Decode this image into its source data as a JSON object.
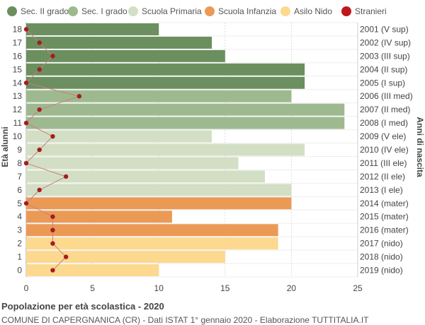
{
  "chart_data": {
    "type": "bar",
    "orientation": "horizontal",
    "title": "Popolazione per età scolastica - 2020",
    "subtitle": "COMUNE DI CAPERGNANICA (CR) - Dati ISTAT 1° gennaio 2020 - Elaborazione TUTTITALIA.IT",
    "ylabel_left": "Età alunni",
    "ylabel_right": "Anni di nascita",
    "xlim": [
      0,
      25
    ],
    "xticks": [
      0,
      5,
      10,
      15,
      20,
      25
    ],
    "grid": true,
    "legend_position": "top",
    "legend": [
      {
        "name": "Sec. II grado",
        "color": "#6b8f5e",
        "marker": "circle"
      },
      {
        "name": "Sec. I grado",
        "color": "#9eb98f",
        "marker": "circle"
      },
      {
        "name": "Scuola Primaria",
        "color": "#d3dfc4",
        "marker": "circle"
      },
      {
        "name": "Scuola Infanzia",
        "color": "#eb9a56",
        "marker": "circle"
      },
      {
        "name": "Asilo Nido",
        "color": "#fcd98e",
        "marker": "circle"
      },
      {
        "name": "Stranieri",
        "color": "#c0161e",
        "marker": "circle"
      }
    ],
    "rows": [
      {
        "age": "18",
        "birth": "2001 (V sup)",
        "value": 10,
        "stranieri": 0,
        "group": "Sec. II grado"
      },
      {
        "age": "17",
        "birth": "2002 (IV sup)",
        "value": 14,
        "stranieri": 1,
        "group": "Sec. II grado"
      },
      {
        "age": "16",
        "birth": "2003 (III sup)",
        "value": 15,
        "stranieri": 2,
        "group": "Sec. II grado"
      },
      {
        "age": "15",
        "birth": "2004 (II sup)",
        "value": 21,
        "stranieri": 1,
        "group": "Sec. II grado"
      },
      {
        "age": "14",
        "birth": "2005 (I sup)",
        "value": 21,
        "stranieri": 0,
        "group": "Sec. II grado"
      },
      {
        "age": "13",
        "birth": "2006 (III med)",
        "value": 20,
        "stranieri": 4,
        "group": "Sec. I grado"
      },
      {
        "age": "12",
        "birth": "2007 (II med)",
        "value": 24,
        "stranieri": 1,
        "group": "Sec. I grado"
      },
      {
        "age": "11",
        "birth": "2008 (I med)",
        "value": 24,
        "stranieri": 0,
        "group": "Sec. I grado"
      },
      {
        "age": "10",
        "birth": "2009 (V ele)",
        "value": 14,
        "stranieri": 2,
        "group": "Scuola Primaria"
      },
      {
        "age": "9",
        "birth": "2010 (IV ele)",
        "value": 21,
        "stranieri": 1,
        "group": "Scuola Primaria"
      },
      {
        "age": "8",
        "birth": "2011 (III ele)",
        "value": 16,
        "stranieri": 0,
        "group": "Scuola Primaria"
      },
      {
        "age": "7",
        "birth": "2012 (II ele)",
        "value": 18,
        "stranieri": 3,
        "group": "Scuola Primaria"
      },
      {
        "age": "6",
        "birth": "2013 (I ele)",
        "value": 20,
        "stranieri": 1,
        "group": "Scuola Primaria"
      },
      {
        "age": "5",
        "birth": "2014 (mater)",
        "value": 20,
        "stranieri": 0,
        "group": "Scuola Infanzia"
      },
      {
        "age": "4",
        "birth": "2015 (mater)",
        "value": 11,
        "stranieri": 2,
        "group": "Scuola Infanzia"
      },
      {
        "age": "3",
        "birth": "2016 (mater)",
        "value": 19,
        "stranieri": 2,
        "group": "Scuola Infanzia"
      },
      {
        "age": "2",
        "birth": "2017 (nido)",
        "value": 19,
        "stranieri": 2,
        "group": "Asilo Nido"
      },
      {
        "age": "1",
        "birth": "2018 (nido)",
        "value": 15,
        "stranieri": 3,
        "group": "Asilo Nido"
      },
      {
        "age": "0",
        "birth": "2019 (nido)",
        "value": 10,
        "stranieri": 2,
        "group": "Asilo Nido"
      }
    ]
  }
}
